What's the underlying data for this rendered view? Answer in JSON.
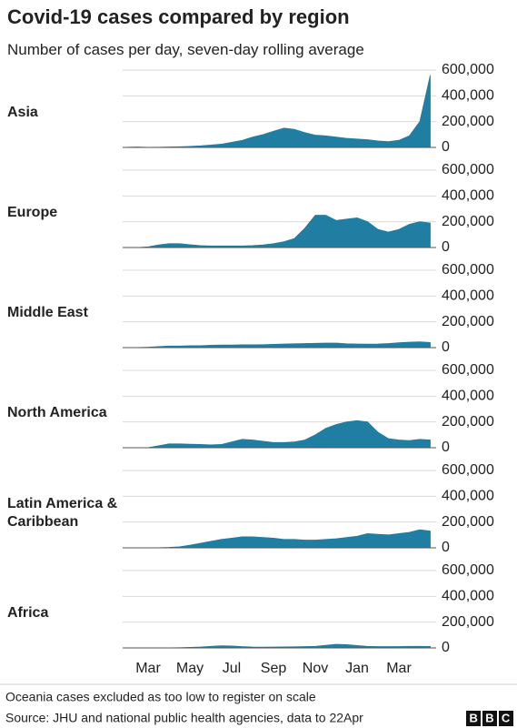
{
  "chart_data": {
    "type": "area",
    "title": "Covid-19 cases compared by region",
    "subtitle": "Number of cases per day, seven-day rolling average",
    "categories": [
      null,
      null,
      "Mar",
      null,
      null,
      null,
      "May",
      null,
      null,
      null,
      "Jul",
      null,
      null,
      null,
      "Sep",
      null,
      null,
      null,
      "Nov",
      null,
      null,
      null,
      "Jan",
      null,
      null,
      null,
      "Mar",
      null,
      null,
      null
    ],
    "ylim": [
      0,
      600000
    ],
    "yticks": [
      0,
      {
        "value": 200000,
        "label": "200,000"
      },
      {
        "value": 400000,
        "label": "400,000"
      },
      {
        "value": 600000,
        "label": "600,000"
      }
    ],
    "grid": true,
    "series": [
      {
        "name": "Asia",
        "color": "#1f7ea1",
        "values": [
          2000,
          3000,
          1000,
          2000,
          3000,
          5000,
          8000,
          12000,
          18000,
          25000,
          40000,
          55000,
          80000,
          100000,
          125000,
          150000,
          140000,
          115000,
          95000,
          90000,
          80000,
          70000,
          65000,
          60000,
          50000,
          45000,
          55000,
          90000,
          200000,
          560000
        ]
      },
      {
        "name": "Europe",
        "color": "#1f7ea1",
        "values": [
          0,
          0,
          5000,
          20000,
          30000,
          30000,
          22000,
          15000,
          12000,
          12000,
          12000,
          12000,
          15000,
          20000,
          30000,
          45000,
          70000,
          150000,
          250000,
          250000,
          210000,
          220000,
          230000,
          200000,
          140000,
          120000,
          140000,
          180000,
          200000,
          190000
        ]
      },
      {
        "name": "Middle East",
        "color": "#1f7ea1",
        "values": [
          0,
          1000,
          3000,
          8000,
          12000,
          12000,
          15000,
          15000,
          18000,
          20000,
          20000,
          22000,
          22000,
          23000,
          25000,
          28000,
          30000,
          32000,
          33000,
          35000,
          35000,
          30000,
          28000,
          27000,
          28000,
          32000,
          38000,
          42000,
          45000,
          40000
        ]
      },
      {
        "name": "North America",
        "color": "#1f7ea1",
        "values": [
          0,
          0,
          1000,
          15000,
          30000,
          30000,
          27000,
          25000,
          22000,
          25000,
          45000,
          65000,
          60000,
          50000,
          40000,
          40000,
          45000,
          60000,
          100000,
          150000,
          180000,
          200000,
          210000,
          200000,
          120000,
          70000,
          60000,
          55000,
          65000,
          60000
        ]
      },
      {
        "name": "Latin America & Caribbean",
        "color": "#1f7ea1",
        "values": [
          0,
          0,
          0,
          1000,
          3000,
          8000,
          20000,
          35000,
          50000,
          65000,
          75000,
          85000,
          85000,
          80000,
          75000,
          65000,
          65000,
          60000,
          60000,
          65000,
          70000,
          80000,
          90000,
          110000,
          105000,
          100000,
          110000,
          120000,
          140000,
          130000
        ]
      },
      {
        "name": "Africa",
        "color": "#1f7ea1",
        "values": [
          0,
          0,
          0,
          500,
          1000,
          2000,
          4000,
          7000,
          12000,
          17000,
          15000,
          10000,
          7000,
          6000,
          7000,
          8000,
          9000,
          10000,
          12000,
          20000,
          28000,
          25000,
          18000,
          12000,
          10000,
          10000,
          10000,
          12000,
          12000,
          11000
        ]
      }
    ],
    "note": "Oceania cases excluded as too low to register on scale",
    "source": "Source: JHU and national public health agencies, data to 22Apr",
    "logo": "BBC"
  }
}
